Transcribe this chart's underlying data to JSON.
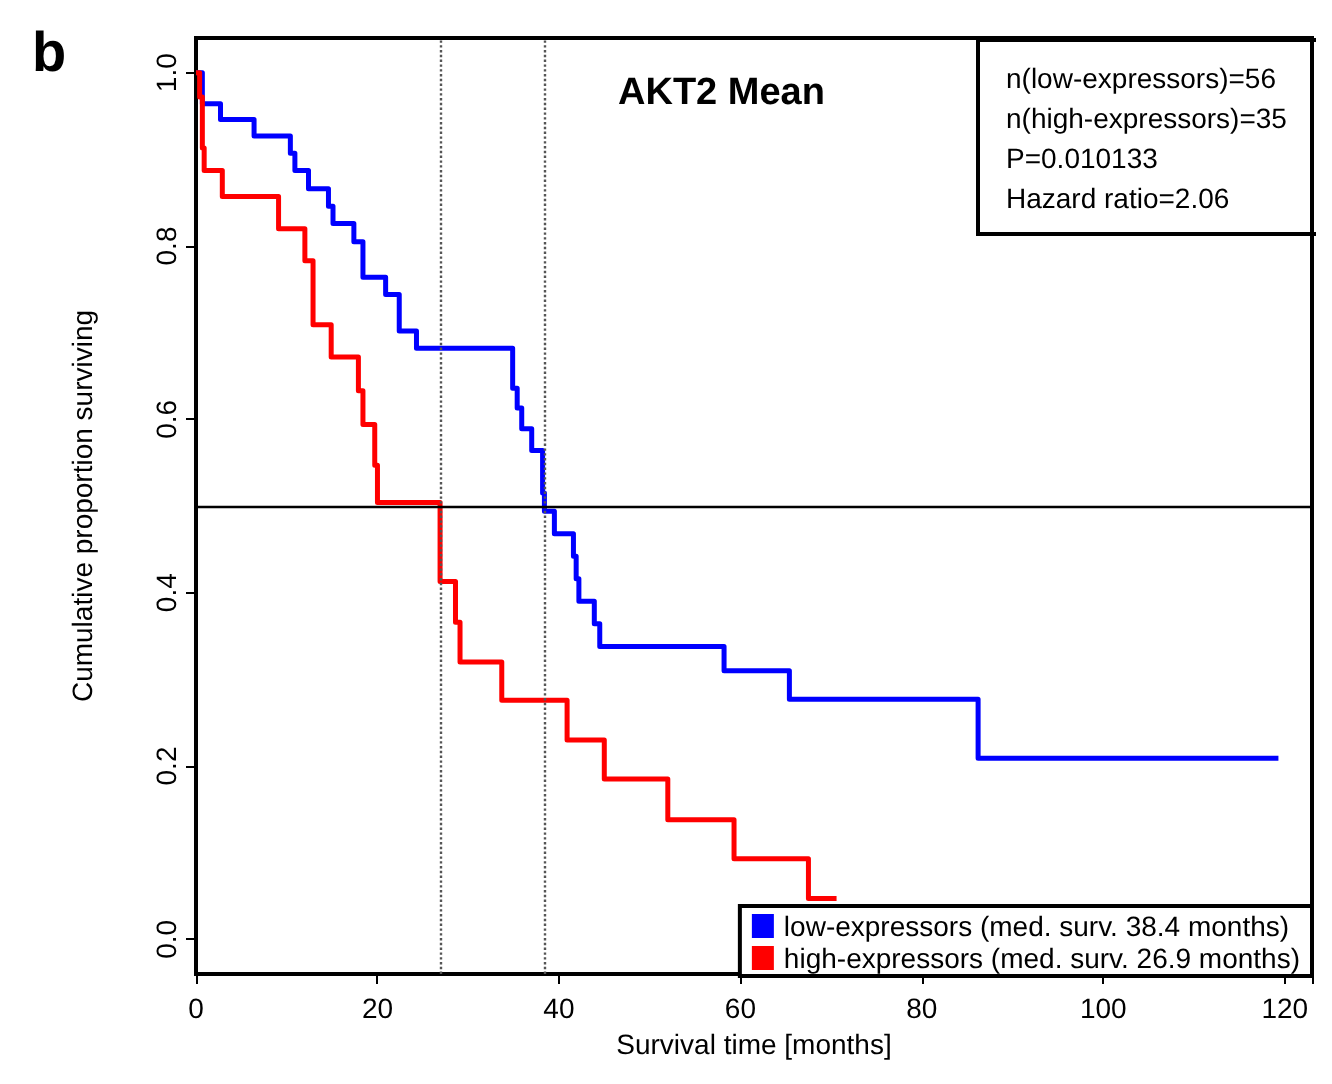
{
  "chart_data": {
    "type": "step",
    "title": "AKT2 Mean",
    "xlabel": "Survival time [months]",
    "ylabel": "Cumulative proportion surviving",
    "annotations": [
      "b",
      "n(low-expressors)=56\nn(high-expressors)=35\nP=0.010133\nHazard ratio=2.06"
    ],
    "series": [
      {
        "name": "low-expressors (med. surv. 38.4 months)",
        "color": "#0000ff",
        "x": [
          0,
          0.7,
          2.7,
          6.4,
          10.4,
          10.9,
          12.4,
          14.6,
          15.1,
          17.4,
          18.4,
          20.9,
          22.4,
          24.3,
          34.9,
          35.4,
          35.9,
          37.0,
          38.2,
          38.4,
          39.5,
          41.6,
          41.9,
          42.2,
          43.9,
          44.5,
          58.2,
          65.4,
          86.2,
          119.3
        ],
        "values": [
          1,
          0.964,
          0.946,
          0.927,
          0.907,
          0.887,
          0.866,
          0.846,
          0.826,
          0.805,
          0.764,
          0.744,
          0.702,
          0.682,
          0.636,
          0.613,
          0.589,
          0.564,
          0.515,
          0.494,
          0.468,
          0.442,
          0.416,
          0.39,
          0.364,
          0.338,
          0.31,
          0.277,
          0.209,
          0.209
        ]
      },
      {
        "name": "high-expressors (med. surv. 26.9 months)",
        "color": "#ff0000",
        "x": [
          0,
          0.4,
          0.7,
          0.9,
          2.9,
          9.1,
          12.0,
          12.9,
          14.9,
          17.9,
          18.4,
          19.7,
          20.0,
          26.9,
          28.6,
          29.1,
          33.7,
          40.9,
          45.0,
          52.0,
          59.3,
          67.5,
          70.6
        ],
        "values": [
          1,
          0.972,
          0.913,
          0.887,
          0.857,
          0.82,
          0.783,
          0.709,
          0.672,
          0.633,
          0.594,
          0.547,
          0.504,
          0.413,
          0.366,
          0.32,
          0.276,
          0.23,
          0.185,
          0.138,
          0.093,
          0.047,
          0.047
        ]
      }
    ],
    "xlim": [
      0,
      123
    ],
    "xticks": [
      0,
      20,
      40,
      60,
      80,
      100,
      120
    ],
    "ylim": [
      -0.04,
      1.04
    ],
    "yticks": [
      {
        "value": 0,
        "label": "0.0"
      },
      {
        "value": 0.2,
        "label": "0.2"
      },
      {
        "value": 0.4,
        "label": "0.4"
      },
      {
        "value": 0.6,
        "label": "0.6"
      },
      {
        "value": 0.8,
        "label": "0.8"
      },
      {
        "value": 1,
        "label": "1.0"
      }
    ],
    "ref_lines": [
      {
        "axis": "x",
        "value": 26.9,
        "color": "#555555",
        "line_style": "dotted"
      },
      {
        "axis": "x",
        "value": 38.4,
        "color": "#555555",
        "line_style": "dotted"
      },
      {
        "axis": "y",
        "value": 0.5,
        "color": "#000000",
        "line_style": "solid"
      }
    ],
    "grid": false,
    "legend": "bottom right",
    "marker": "none",
    "line_style": "solid"
  }
}
